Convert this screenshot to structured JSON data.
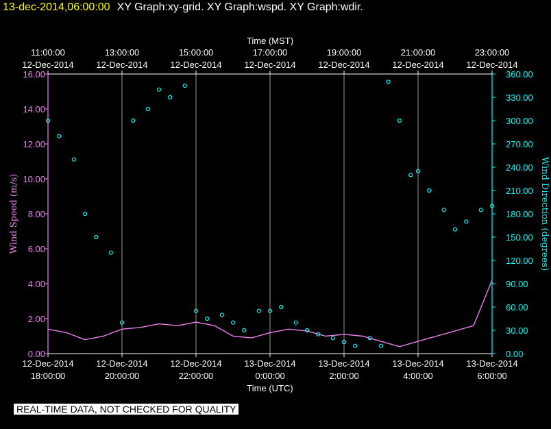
{
  "header": {
    "timestamp": "13-dec-2014,06:00:00",
    "title": "XY Graph:xy-grid.  XY Graph:wspd.  XY Graph:wdir."
  },
  "banner": "REAL-TIME DATA, NOT CHECKED FOR QUALITY",
  "colors": {
    "background": "#000000",
    "speed": "#ee82ee",
    "direction": "#00ffff",
    "grid": "#ffffff",
    "timestamp": "#ffff00"
  },
  "chart_data": {
    "type": "scatter",
    "grid": true,
    "top_axis": {
      "label": "Time (MST)",
      "ticks": [
        {
          "time": "11:00:00",
          "date": "12-Dec-2014"
        },
        {
          "time": "13:00:00",
          "date": "12-Dec-2014"
        },
        {
          "time": "15:00:00",
          "date": "12-Dec-2014"
        },
        {
          "time": "17:00:00",
          "date": "12-Dec-2014"
        },
        {
          "time": "19:00:00",
          "date": "12-Dec-2014"
        },
        {
          "time": "21:00:00",
          "date": "12-Dec-2014"
        },
        {
          "time": "23:00:00",
          "date": "12-Dec-2014"
        }
      ]
    },
    "bottom_axis": {
      "label": "Time (UTC)",
      "ticks": [
        {
          "date": "12-Dec-2014",
          "time": "18:00:00"
        },
        {
          "date": "12-Dec-2014",
          "time": "20:00:00"
        },
        {
          "date": "12-Dec-2014",
          "time": "22:00:00"
        },
        {
          "date": "13-Dec-2014",
          "time": "0:00:00"
        },
        {
          "date": "13-Dec-2014",
          "time": "2:00:00"
        },
        {
          "date": "13-Dec-2014",
          "time": "4:00:00"
        },
        {
          "date": "13-Dec-2014",
          "time": "6:00:00"
        }
      ]
    },
    "left_axis": {
      "label": "Wind Speed (m/s)",
      "range": [
        0,
        16
      ],
      "ticks": [
        "0.00",
        "2.00",
        "4.00",
        "6.00",
        "8.00",
        "10.00",
        "12.00",
        "14.00",
        "16.00"
      ]
    },
    "right_axis": {
      "label": "Wind Direction (degrees)",
      "range": [
        0,
        360
      ],
      "ticks": [
        "0.00",
        "30.00",
        "60.00",
        "90.00",
        "120.00",
        "150.00",
        "180.00",
        "210.00",
        "240.00",
        "270.00",
        "300.00",
        "330.00",
        "360.00"
      ]
    },
    "x_range_utc_hours": [
      18,
      30
    ],
    "series": [
      {
        "name": "wspd",
        "axis": "left",
        "style": "line",
        "x": [
          18.0,
          18.5,
          19.0,
          19.5,
          20.0,
          20.5,
          21.0,
          21.5,
          22.0,
          22.5,
          23.0,
          23.5,
          24.0,
          24.5,
          25.0,
          25.5,
          26.0,
          26.5,
          27.0,
          27.5,
          28.0,
          28.5,
          29.0,
          29.5,
          30.0
        ],
        "y": [
          1.4,
          1.2,
          0.8,
          1.0,
          1.4,
          1.5,
          1.7,
          1.6,
          1.8,
          1.6,
          1.0,
          0.9,
          1.2,
          1.4,
          1.3,
          1.0,
          1.1,
          1.0,
          0.7,
          0.4,
          0.7,
          1.0,
          1.3,
          1.6,
          4.2
        ]
      },
      {
        "name": "wdir",
        "axis": "right",
        "style": "points",
        "x": [
          18.0,
          18.3,
          18.7,
          19.0,
          19.3,
          19.7,
          20.0,
          20.3,
          20.7,
          21.0,
          21.3,
          21.7,
          22.0,
          22.3,
          22.7,
          23.0,
          23.3,
          23.7,
          24.0,
          24.3,
          24.7,
          25.0,
          25.3,
          25.7,
          26.0,
          26.3,
          26.7,
          27.0,
          27.2,
          27.5,
          27.8,
          28.0,
          28.3,
          28.7,
          29.0,
          29.3,
          29.7,
          30.0
        ],
        "y": [
          300,
          280,
          250,
          180,
          150,
          130,
          40,
          300,
          315,
          340,
          330,
          345,
          55,
          45,
          50,
          40,
          30,
          55,
          55,
          60,
          40,
          30,
          25,
          20,
          15,
          10,
          20,
          10,
          350,
          300,
          230,
          235,
          210,
          185,
          160,
          170,
          185,
          190
        ]
      }
    ]
  }
}
